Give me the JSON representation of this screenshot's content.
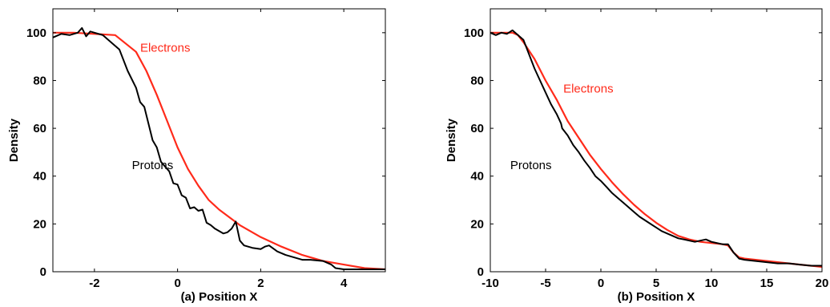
{
  "chart_data": [
    {
      "type": "line",
      "xlabel": "(a) Position X",
      "ylabel": "Density",
      "xlim": [
        -3,
        5
      ],
      "ylim": [
        0,
        110
      ],
      "xticks": [
        -2,
        0,
        2,
        4
      ],
      "yticks": [
        0,
        20,
        40,
        60,
        80,
        100
      ],
      "grid": false,
      "series": [
        {
          "name": "Electrons",
          "color": "#ff2a1a",
          "x": [
            -3,
            -2.5,
            -2,
            -1.5,
            -1,
            -0.75,
            -0.5,
            -0.25,
            0,
            0.25,
            0.5,
            0.75,
            1,
            1.5,
            2,
            2.5,
            3,
            3.5,
            4,
            4.5,
            5
          ],
          "y": [
            100,
            100,
            99.5,
            99,
            92,
            84,
            74,
            63,
            52,
            43,
            36,
            30,
            26,
            19.5,
            14.5,
            10.5,
            7,
            4.5,
            3,
            1.5,
            1
          ]
        },
        {
          "name": "Protons",
          "color": "#000000",
          "x": [
            -3,
            -2.8,
            -2.6,
            -2.4,
            -2.3,
            -2.2,
            -2.1,
            -2,
            -1.8,
            -1.6,
            -1.4,
            -1.2,
            -1,
            -0.9,
            -0.8,
            -0.7,
            -0.6,
            -0.5,
            -0.4,
            -0.3,
            -0.2,
            -0.1,
            0,
            0.1,
            0.2,
            0.3,
            0.4,
            0.5,
            0.6,
            0.7,
            0.8,
            0.9,
            1,
            1.1,
            1.2,
            1.3,
            1.4,
            1.5,
            1.6,
            1.7,
            1.8,
            2,
            2.1,
            2.2,
            2.4,
            2.6,
            2.8,
            3,
            3.2,
            3.5,
            3.7,
            3.8,
            4,
            4.5,
            5
          ],
          "y": [
            98,
            99.5,
            99,
            100,
            102,
            98.5,
            100.5,
            100,
            99,
            96,
            93,
            84,
            77,
            71,
            69,
            62,
            55,
            52,
            46,
            44,
            42,
            37,
            36.5,
            32,
            31,
            26.5,
            27,
            25.5,
            26,
            20.5,
            19.5,
            18,
            17,
            16,
            16.5,
            18,
            21,
            13,
            11,
            10.5,
            10,
            9.5,
            10.5,
            11,
            8.5,
            7,
            6,
            5,
            5,
            4.5,
            3,
            1.5,
            1,
            1,
            1
          ]
        }
      ],
      "annotations": [
        {
          "text": "Electrons",
          "x": -0.9,
          "y": 92,
          "color": "#ff2a1a"
        },
        {
          "text": "Protons",
          "x": -1.1,
          "y": 43,
          "color": "#000000"
        }
      ]
    },
    {
      "type": "line",
      "xlabel": "(b) Position X",
      "ylabel": "Density",
      "xlim": [
        -10,
        20
      ],
      "ylim": [
        0,
        110
      ],
      "xticks": [
        -10,
        -5,
        0,
        5,
        10,
        15,
        20
      ],
      "yticks": [
        0,
        20,
        40,
        60,
        80,
        100
      ],
      "grid": false,
      "series": [
        {
          "name": "Electrons",
          "color": "#ff2a1a",
          "x": [
            -10,
            -9,
            -8,
            -7.5,
            -7,
            -6,
            -5,
            -4,
            -3,
            -2,
            -1,
            0,
            1,
            2,
            3,
            4,
            5,
            6,
            7,
            8,
            9,
            10,
            11,
            11.5,
            12,
            12.5,
            13,
            14,
            15,
            16,
            17,
            18,
            19,
            20
          ],
          "y": [
            100,
            100,
            100,
            99,
            96,
            89,
            80,
            72,
            63,
            56,
            49,
            43,
            37.5,
            32.5,
            28,
            24,
            20.5,
            17.5,
            15,
            13.5,
            12.5,
            12,
            11.5,
            11,
            8,
            6,
            5.5,
            5,
            4.5,
            4,
            3.5,
            3,
            2.5,
            2
          ]
        },
        {
          "name": "Protons",
          "color": "#000000",
          "x": [
            -10,
            -9.5,
            -9,
            -8.5,
            -8,
            -7.5,
            -7,
            -6.5,
            -6,
            -5.5,
            -5,
            -4.5,
            -4,
            -3.8,
            -3.6,
            -3.5,
            -3,
            -2.5,
            -2,
            -1.5,
            -1,
            -0.5,
            0,
            0.5,
            1,
            1.5,
            2,
            2.5,
            3,
            3.5,
            4,
            4.5,
            5,
            5.5,
            6,
            6.5,
            7,
            7.5,
            8,
            8.5,
            9,
            9.5,
            10,
            10.5,
            11,
            11.5,
            12,
            12.5,
            13,
            14,
            15,
            16,
            17,
            18,
            19,
            20
          ],
          "y": [
            100,
            99,
            100,
            99.5,
            101,
            99,
            97,
            91,
            85,
            80,
            75,
            70,
            66,
            64,
            62,
            60,
            57,
            53,
            50,
            46.5,
            43.5,
            40,
            38,
            35.5,
            33,
            31,
            29,
            27,
            25,
            23,
            21.5,
            20,
            18.5,
            17,
            16,
            15,
            14,
            13.5,
            13,
            12.5,
            13,
            13.5,
            12.5,
            12,
            11.5,
            11.5,
            8,
            5.5,
            5,
            4.5,
            4,
            3.5,
            3.5,
            3,
            2.5,
            2.5
          ]
        }
      ],
      "annotations": [
        {
          "text": "Electrons",
          "x": -3.4,
          "y": 75,
          "color": "#ff2a1a"
        },
        {
          "text": "Protons",
          "x": -8.2,
          "y": 43,
          "color": "#000000"
        }
      ]
    }
  ]
}
